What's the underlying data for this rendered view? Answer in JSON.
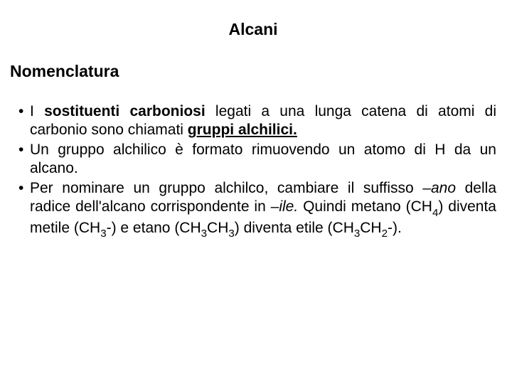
{
  "title": "Alcani",
  "subtitle": "Nomenclatura",
  "bullets": [
    {
      "html": "I <span class='b'>sostituenti carboniosi</span> legati a una lunga catena di atomi di carbonio sono chiamati <span class='b u'>gruppi alchilici.</span>"
    },
    {
      "html": "Un gruppo alchilico è formato rimuovendo un atomo di H da un alcano."
    },
    {
      "html": "Per  nominare  un gruppo alchilco, cambiare il suffisso <span class='i'>–ano</span> della radice dell'alcano corrispondente in <span class='i'>–ile.</span> Quindi metano (CH<span class='sub'>4</span>) diventa metile (CH<span class='sub'>3</span>-) e etano (CH<span class='sub'>3</span>CH<span class='sub'>3</span>) diventa etile (CH<span class='sub'>3</span>CH<span class='sub'>2</span>-)."
    }
  ],
  "colors": {
    "background": "#ffffff",
    "text": "#000000"
  },
  "fontsizes": {
    "title": 23,
    "subtitle": 23,
    "body": 21
  }
}
